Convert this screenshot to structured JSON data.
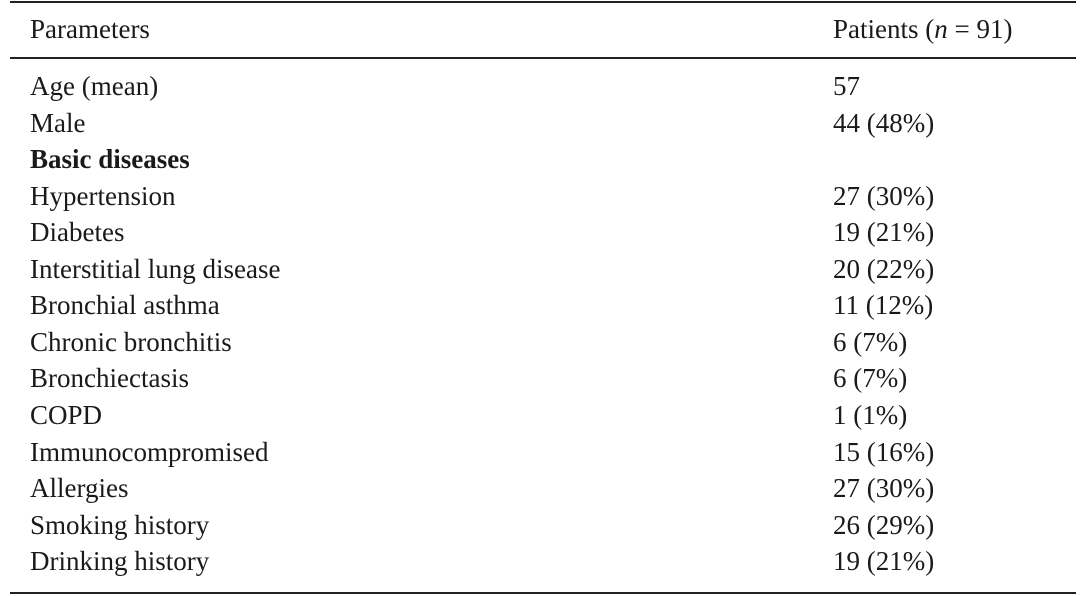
{
  "table": {
    "header": {
      "parameters": "Parameters",
      "patients": [
        "Patients (",
        "n",
        " = 91)"
      ]
    },
    "rows": [
      [
        "Age (mean)",
        "57"
      ],
      [
        "Male",
        "44 (48%)"
      ],
      [
        "Basic diseases"
      ],
      [
        "Hypertension",
        "27 (30%)"
      ],
      [
        "Diabetes",
        "19 (21%)"
      ],
      [
        "Interstitial lung disease",
        "20 (22%)"
      ],
      [
        "Bronchial asthma",
        "11 (12%)"
      ],
      [
        "Chronic bronchitis",
        "6 (7%)"
      ],
      [
        "Bronchiectasis",
        "6 (7%)"
      ],
      [
        "COPD",
        "1 (1%)"
      ],
      [
        "Immunocompromised",
        "15 (16%)"
      ],
      [
        "Allergies",
        "27 (30%)"
      ],
      [
        "Smoking history",
        "26 (29%)"
      ],
      [
        "Drinking history",
        "19 (21%)"
      ]
    ]
  }
}
